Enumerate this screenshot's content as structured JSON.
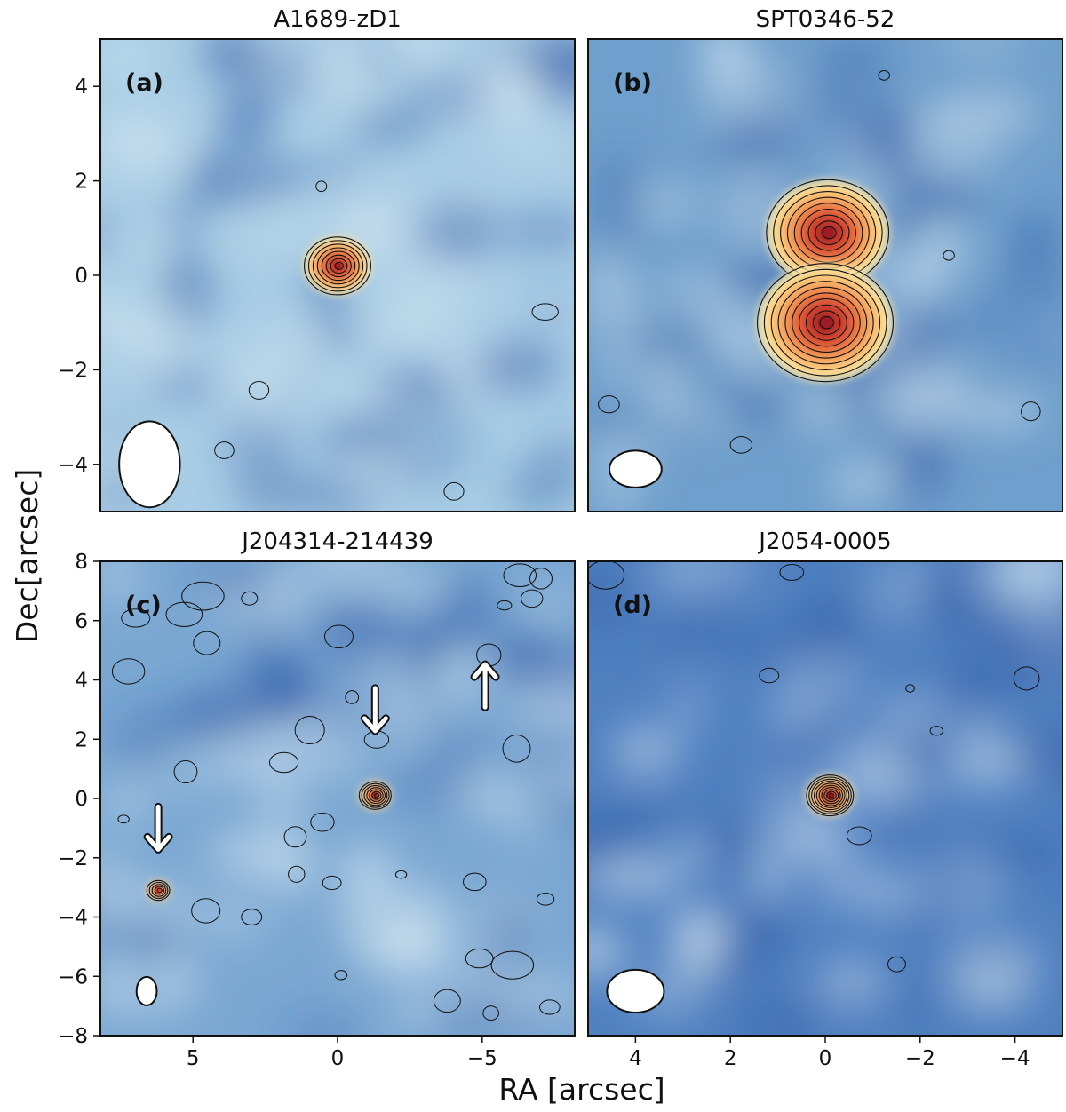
{
  "chart_data": [
    {
      "type": "heatmap",
      "panel_label": "(a)",
      "title": "A1689-zD1",
      "xlim": [
        8.2,
        -8.2
      ],
      "ylim": [
        -5,
        5
      ],
      "xticks": [],
      "yticks": [
        -4,
        -2,
        0,
        2,
        4
      ],
      "ytick_labels": [
        "−4",
        "−2",
        "0",
        "2",
        "4"
      ],
      "background": "#a9cde5",
      "sources": [
        {
          "name": "main",
          "x": 0.0,
          "y": 0.2,
          "peak": "#a01c24",
          "contours": 8
        }
      ],
      "beam": {
        "x": 6.5,
        "y": -4.0,
        "major": 2.1,
        "minor": 1.4
      }
    },
    {
      "type": "heatmap",
      "panel_label": "(b)",
      "title": "SPT0346-52",
      "xlim": [
        5,
        -5
      ],
      "ylim": [
        -5,
        5
      ],
      "xticks": [],
      "yticks": [],
      "background": "#6f9fcc",
      "sources": [
        {
          "name": "north",
          "x": -0.05,
          "y": 0.9,
          "peak": "#a01c24",
          "contours": 9
        },
        {
          "name": "south",
          "x": 0.0,
          "y": -1.0,
          "peak": "#a01c24",
          "contours": 10
        }
      ],
      "beam": {
        "x": 4.0,
        "y": -4.1,
        "major": 1.1,
        "minor": 0.6
      }
    },
    {
      "type": "heatmap",
      "panel_label": "(c)",
      "title": "J204314-214439",
      "xlim": [
        8.2,
        -8.2
      ],
      "ylim": [
        -8,
        8
      ],
      "xticks": [
        5,
        0,
        -5
      ],
      "xtick_labels": [
        "5",
        "0",
        "−5"
      ],
      "yticks": [
        -8,
        -6,
        -4,
        -2,
        0,
        2,
        4,
        6,
        8
      ],
      "ytick_labels": [
        "−8",
        "−6",
        "−4",
        "−2",
        "0",
        "2",
        "4",
        "6",
        "8"
      ],
      "background": "#7aa7d2",
      "sources": [
        {
          "name": "center",
          "x": -1.3,
          "y": 0.1,
          "peak": "#b5222a",
          "contours": 7
        },
        {
          "name": "southeast",
          "x": 6.2,
          "y": -3.1,
          "peak": "#d9432f",
          "contours": 5
        }
      ],
      "arrows": [
        {
          "x": -1.3,
          "y": 3.0,
          "direction": "down"
        },
        {
          "x": 6.2,
          "y": -1.0,
          "direction": "down"
        },
        {
          "x": -5.1,
          "y": 3.8,
          "direction": "up"
        }
      ],
      "beam": {
        "x": 6.6,
        "y": -6.5,
        "major": 0.7,
        "minor": 0.6
      }
    },
    {
      "type": "heatmap",
      "panel_label": "(d)",
      "title": "J2054-0005",
      "xlim": [
        5,
        -5
      ],
      "ylim": [
        -8,
        8
      ],
      "xticks": [
        4,
        2,
        0,
        -2,
        -4
      ],
      "xtick_labels": [
        "4",
        "2",
        "0",
        "−2",
        "−4"
      ],
      "yticks": [],
      "background": "#4f80c0",
      "sources": [
        {
          "name": "main",
          "x": -0.1,
          "y": 0.1,
          "peak": "#a01c24",
          "contours": 10
        }
      ],
      "beam": {
        "x": 4.0,
        "y": -6.5,
        "major": 1.2,
        "minor": 0.9
      }
    }
  ],
  "axes": {
    "xlabel": "RA [arcsec]",
    "ylabel": "Dec[arcsec]"
  }
}
